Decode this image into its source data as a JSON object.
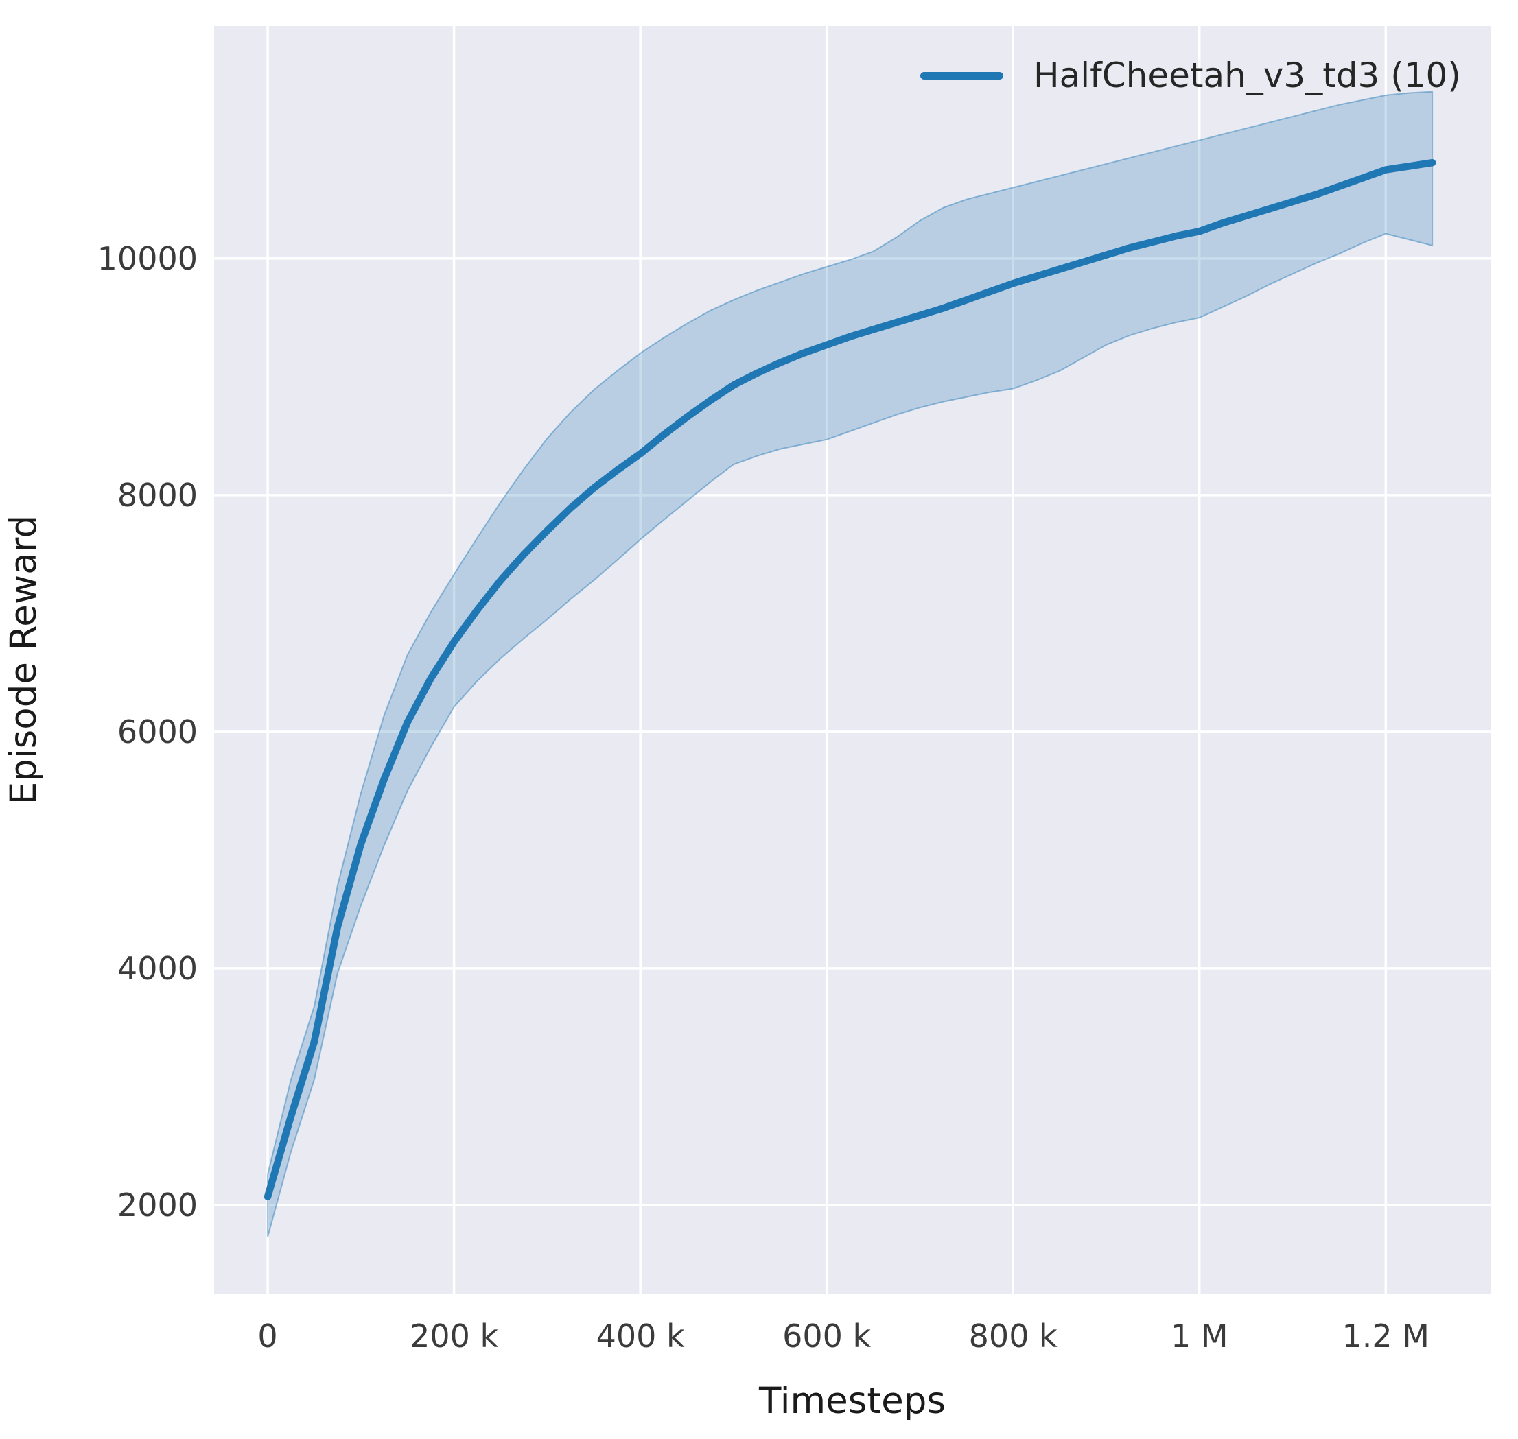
{
  "chart_data": {
    "type": "line",
    "title": "",
    "xlabel": "Timesteps",
    "ylabel": "Episode Reward",
    "grid": true,
    "legend_position": "upper right",
    "style": {
      "plot_background": "#eaeaf2",
      "grid_color": "#ffffff",
      "line_color": "#1f77b4",
      "band_color": "#1f77b4",
      "band_alpha": 0.24,
      "band_edge_alpha": 0.45,
      "tick_text_color": "#3b3b3b",
      "axis_text_color": "#1a1a1a"
    },
    "xlim": [
      -57500,
      1312500
    ],
    "ylim": [
      1245,
      11965
    ],
    "xticks": [
      {
        "value": 0,
        "label": "0"
      },
      {
        "value": 200000,
        "label": "200 k"
      },
      {
        "value": 400000,
        "label": "400 k"
      },
      {
        "value": 600000,
        "label": "600 k"
      },
      {
        "value": 800000,
        "label": "800 k"
      },
      {
        "value": 1000000,
        "label": "1 M"
      },
      {
        "value": 1200000,
        "label": "1.2 M"
      }
    ],
    "yticks": [
      {
        "value": 2000,
        "label": "2000"
      },
      {
        "value": 4000,
        "label": "4000"
      },
      {
        "value": 6000,
        "label": "6000"
      },
      {
        "value": 8000,
        "label": "8000"
      },
      {
        "value": 10000,
        "label": "10000"
      }
    ],
    "series": [
      {
        "name": "HalfCheetah_v3_td3 (10)",
        "color": "#1f77b4",
        "x": [
          0,
          25000,
          50000,
          75000,
          100000,
          125000,
          150000,
          175000,
          200000,
          225000,
          250000,
          275000,
          300000,
          325000,
          350000,
          375000,
          400000,
          425000,
          450000,
          475000,
          500000,
          525000,
          550000,
          575000,
          600000,
          625000,
          650000,
          675000,
          700000,
          725000,
          750000,
          775000,
          800000,
          825000,
          850000,
          875000,
          900000,
          925000,
          950000,
          975000,
          1000000,
          1025000,
          1050000,
          1075000,
          1100000,
          1125000,
          1150000,
          1175000,
          1200000,
          1225000,
          1250000
        ],
        "mean": [
          2070,
          2750,
          3380,
          4350,
          5050,
          5600,
          6080,
          6450,
          6760,
          7030,
          7280,
          7500,
          7700,
          7890,
          8060,
          8210,
          8350,
          8510,
          8660,
          8800,
          8930,
          9030,
          9120,
          9200,
          9270,
          9340,
          9400,
          9460,
          9520,
          9580,
          9650,
          9720,
          9790,
          9850,
          9910,
          9970,
          10030,
          10090,
          10140,
          10190,
          10230,
          10300,
          10360,
          10420,
          10480,
          10540,
          10610,
          10680,
          10750,
          10780,
          10810
        ],
        "lower": [
          1730,
          2450,
          3060,
          3960,
          4530,
          5040,
          5500,
          5870,
          6210,
          6430,
          6620,
          6790,
          6950,
          7120,
          7280,
          7450,
          7625,
          7790,
          7950,
          8110,
          8260,
          8330,
          8390,
          8430,
          8470,
          8540,
          8610,
          8680,
          8740,
          8790,
          8830,
          8870,
          8900,
          8970,
          9050,
          9160,
          9270,
          9350,
          9410,
          9460,
          9500,
          9590,
          9680,
          9780,
          9870,
          9960,
          10040,
          10130,
          10210,
          10160,
          10110
        ],
        "upper": [
          2260,
          3060,
          3680,
          4700,
          5480,
          6140,
          6650,
          7010,
          7330,
          7640,
          7940,
          8220,
          8480,
          8700,
          8890,
          9050,
          9200,
          9330,
          9450,
          9560,
          9650,
          9730,
          9800,
          9870,
          9930,
          9990,
          10060,
          10180,
          10320,
          10430,
          10500,
          10550,
          10600,
          10650,
          10700,
          10750,
          10800,
          10850,
          10900,
          10950,
          11000,
          11050,
          11100,
          11150,
          11200,
          11250,
          11300,
          11340,
          11380,
          11400,
          11410
        ]
      }
    ],
    "legend": {
      "entries": [
        {
          "label": "HalfCheetah_v3_td3 (10)",
          "color": "#1f77b4"
        }
      ]
    }
  }
}
